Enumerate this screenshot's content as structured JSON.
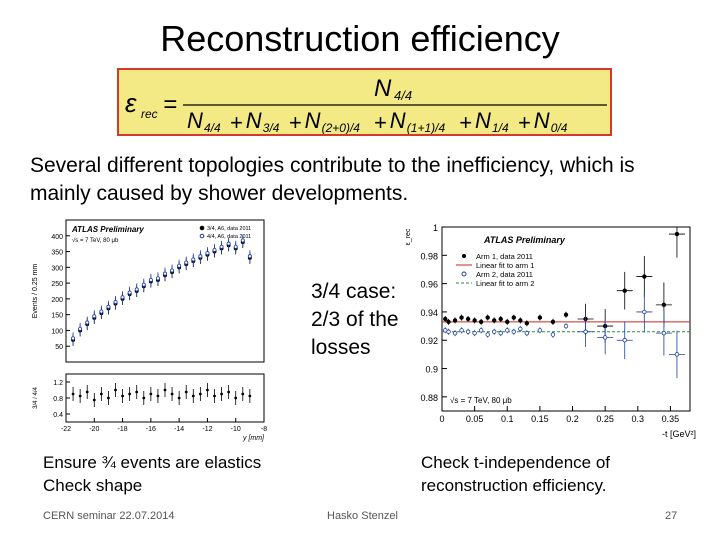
{
  "slide": {
    "title": "Reconstruction efficiency",
    "intro_line1": "Several different topologies contribute to the inefficiency, which is",
    "intro_line2": "mainly caused by shower developments.",
    "case_line1": "3/4  case:",
    "case_line2": "2/3 of the",
    "case_line3": "losses",
    "note_left_line1": "Ensure ¾ events are elastics",
    "note_left_line2": "Check shape",
    "note_right_line1": "Check t-independence of",
    "note_right_line2": "reconstruction efficiency.",
    "footer_left": "CERN seminar 22.07.2014",
    "footer_center": "Hasko Stenzel",
    "footer_right": "27"
  },
  "formula": {
    "lhs": "ε",
    "lhs_sub": "rec",
    "eq": "=",
    "numerator": "N",
    "numerator_sub": "4/4",
    "terms": [
      {
        "sym": "N",
        "sub": "4/4"
      },
      {
        "sym": "N",
        "sub": "3/4"
      },
      {
        "sym": "N",
        "sub": "(2+0)/4"
      },
      {
        "sym": "N",
        "sub": "(1+1)/4"
      },
      {
        "sym": "N",
        "sub": "1/4"
      },
      {
        "sym": "N",
        "sub": "0/4"
      }
    ],
    "plus": "+"
  },
  "chart_data": [
    {
      "type": "scatter",
      "title": "",
      "atlas_label": "ATLAS Preliminary",
      "energy_label": "√s = 7 TeV, 80 μb",
      "legend_position": "top-right",
      "ylabel": "Events / 0.25 mm",
      "xlabel": "y [mm]",
      "ratio_ylabel": "3/4 / 4/4",
      "xlim": [
        -22,
        -8
      ],
      "ylim": [
        0,
        450
      ],
      "x_ticks": [
        -22,
        -20,
        -18,
        -16,
        -14,
        -12,
        -10,
        -8
      ],
      "y_ticks": [
        50,
        100,
        150,
        200,
        250,
        300,
        350,
        400
      ],
      "ratio_ticks": [
        0.4,
        0.8,
        1.2
      ],
      "ratio_ylim": [
        0.2,
        1.4
      ],
      "series": [
        {
          "name": "3/4, A6, data 2011",
          "color": "#000000",
          "x": [
            -21.5,
            -21,
            -20.5,
            -20,
            -19.5,
            -19,
            -18.5,
            -18,
            -17.5,
            -17,
            -16.5,
            -16,
            -15.5,
            -15,
            -14.5,
            -14,
            -13.5,
            -13,
            -12.5,
            -12,
            -11.5,
            -11,
            -10.5,
            -10,
            -9.5,
            -9
          ],
          "y": [
            70,
            100,
            120,
            140,
            155,
            170,
            185,
            200,
            215,
            225,
            240,
            255,
            260,
            275,
            285,
            300,
            310,
            320,
            330,
            340,
            350,
            360,
            370,
            360,
            380,
            330
          ]
        },
        {
          "name": "4/4, A6, data 2011",
          "color": "#1d3ea0",
          "x": [
            -21.5,
            -21,
            -20.5,
            -20,
            -19.5,
            -19,
            -18.5,
            -18,
            -17.5,
            -17,
            -16.5,
            -16,
            -15.5,
            -15,
            -14.5,
            -14,
            -13.5,
            -13,
            -12.5,
            -12,
            -11.5,
            -11,
            -10.5,
            -10,
            -9.5,
            -9
          ],
          "y": [
            75,
            105,
            125,
            145,
            160,
            175,
            190,
            205,
            220,
            230,
            245,
            260,
            265,
            280,
            290,
            305,
            315,
            325,
            335,
            345,
            355,
            365,
            375,
            365,
            385,
            335
          ]
        }
      ],
      "ratio": {
        "x": [
          -21.5,
          -21,
          -20.5,
          -20,
          -19.5,
          -19,
          -18.5,
          -18,
          -17.5,
          -17,
          -16.5,
          -16,
          -15.5,
          -15,
          -14.5,
          -14,
          -13.5,
          -13,
          -12.5,
          -12,
          -11.5,
          -11,
          -10.5,
          -10,
          -9.5,
          -9
        ],
        "y": [
          0.9,
          0.85,
          0.95,
          0.75,
          0.9,
          0.8,
          1.0,
          0.85,
          0.9,
          0.95,
          0.8,
          0.9,
          0.85,
          1.0,
          0.9,
          0.8,
          0.95,
          0.85,
          0.9,
          1.0,
          0.85,
          0.9,
          0.95,
          0.8,
          0.9,
          0.85
        ]
      }
    },
    {
      "type": "scatter",
      "title": "",
      "atlas_label": "ATLAS Preliminary",
      "energy_label": "√s = 7 TeV, 80 μb",
      "legend_position": "top-right",
      "ylabel": "ε_rec",
      "xlabel": "-t [GeV²]",
      "xlim": [
        0,
        0.38
      ],
      "ylim": [
        0.87,
        1.0
      ],
      "x_tick_labels": [
        "0",
        "0.05",
        "0.1",
        "0.15",
        "0.2",
        "0.25",
        "0.3",
        "0.35"
      ],
      "x_ticks": [
        0,
        0.05,
        0.1,
        0.15,
        0.2,
        0.25,
        0.3,
        0.35
      ],
      "y_tick_labels": [
        "0.88",
        "0.9",
        "0.92",
        "0.94",
        "0.96",
        "0.98",
        "1"
      ],
      "y_ticks": [
        0.88,
        0.9,
        0.92,
        0.94,
        0.96,
        0.98,
        1.0
      ],
      "series": [
        {
          "name": "Arm 1, data 2011",
          "color": "#000000",
          "marker": "filled",
          "x": [
            0.005,
            0.01,
            0.02,
            0.03,
            0.04,
            0.05,
            0.06,
            0.07,
            0.08,
            0.09,
            0.1,
            0.11,
            0.12,
            0.13,
            0.15,
            0.17,
            0.19,
            0.22,
            0.25,
            0.28,
            0.31,
            0.34,
            0.36
          ],
          "y": [
            0.935,
            0.933,
            0.934,
            0.936,
            0.935,
            0.934,
            0.933,
            0.936,
            0.934,
            0.935,
            0.933,
            0.936,
            0.934,
            0.932,
            0.936,
            0.933,
            0.938,
            0.935,
            0.93,
            0.955,
            0.965,
            0.945,
            0.995
          ]
        },
        {
          "name": "Arm 2, data 2011",
          "color": "#1d3ea0",
          "marker": "open",
          "x": [
            0.005,
            0.01,
            0.02,
            0.03,
            0.04,
            0.05,
            0.06,
            0.07,
            0.08,
            0.09,
            0.1,
            0.11,
            0.12,
            0.13,
            0.15,
            0.17,
            0.19,
            0.22,
            0.25,
            0.28,
            0.31,
            0.34,
            0.36
          ],
          "y": [
            0.927,
            0.926,
            0.925,
            0.927,
            0.926,
            0.925,
            0.927,
            0.924,
            0.926,
            0.925,
            0.927,
            0.926,
            0.928,
            0.925,
            0.927,
            0.924,
            0.93,
            0.926,
            0.922,
            0.92,
            0.94,
            0.925,
            0.91
          ]
        }
      ],
      "fits": [
        {
          "name": "Linear fit to arm 1",
          "color": "#c22a22",
          "y": 0.933
        },
        {
          "name": "Linear fit to arm 2",
          "color": "#2a8a4a",
          "y": 0.926
        }
      ]
    }
  ]
}
